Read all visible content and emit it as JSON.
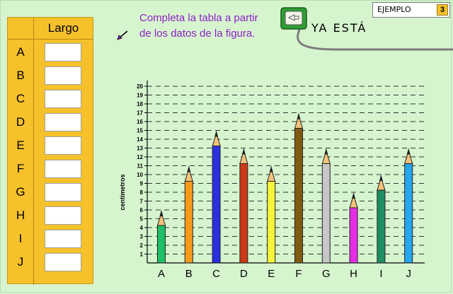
{
  "instruction": {
    "line1": "Completa la tabla a partir",
    "line2": "de los datos de la figura."
  },
  "check_button": {
    "label": "YA ESTÁ"
  },
  "example": {
    "label": "EJEMPLO",
    "number": "3"
  },
  "table": {
    "header": "Largo",
    "rows": [
      {
        "label": "A",
        "value": ""
      },
      {
        "label": "B",
        "value": ""
      },
      {
        "label": "C",
        "value": ""
      },
      {
        "label": "D",
        "value": ""
      },
      {
        "label": "E",
        "value": ""
      },
      {
        "label": "F",
        "value": ""
      },
      {
        "label": "G",
        "value": ""
      },
      {
        "label": "H",
        "value": ""
      },
      {
        "label": "I",
        "value": ""
      },
      {
        "label": "J",
        "value": ""
      }
    ]
  },
  "chart_data": {
    "type": "bar",
    "ylabel": "centímetros",
    "ylim": [
      0,
      20
    ],
    "yticks": [
      "1",
      "2",
      "3",
      "4",
      "5",
      "6",
      "7",
      "8",
      "9",
      "10",
      "11",
      "12",
      "13",
      "14",
      "15",
      "16",
      "17",
      "18",
      "19",
      "20"
    ],
    "grid": true,
    "categories": [
      "A",
      "B",
      "C",
      "D",
      "E",
      "F",
      "G",
      "H",
      "I",
      "J"
    ],
    "values": [
      6,
      11,
      15,
      13,
      11,
      17,
      13,
      8,
      10,
      13
    ],
    "colors": [
      "#1fbf66",
      "#f69a1c",
      "#2b2fe0",
      "#cc3a18",
      "#f7f53a",
      "#7f5a10",
      "#c6c6c6",
      "#e52ee5",
      "#1e8f63",
      "#25a6ef"
    ]
  },
  "icons": [
    "arrow-pointer-icon",
    "monitor-check-icon"
  ]
}
